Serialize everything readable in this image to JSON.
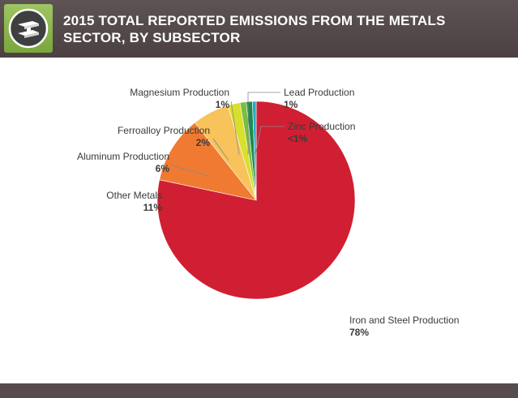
{
  "header": {
    "title_line1": "2015 TOTAL REPORTED EMISSIONS FROM THE METALS",
    "title_line2": "SECTOR, BY SUBSECTOR",
    "icon": "steel-beam-icon"
  },
  "chart_data": {
    "type": "pie",
    "title": "2015 TOTAL REPORTED EMISSIONS FROM THE METALS SECTOR, BY SUBSECTOR",
    "slices": [
      {
        "label": "Iron and Steel Production",
        "value": 78,
        "pct_label": "78%",
        "color": "#d01f32"
      },
      {
        "label": "Other Metals",
        "value": 11,
        "pct_label": "11%",
        "color": "#f07a32"
      },
      {
        "label": "Aluminum Production",
        "value": 6,
        "pct_label": "6%",
        "color": "#f7c35a"
      },
      {
        "label": "Ferroalloy Production",
        "value": 2,
        "pct_label": "2%",
        "color": "#d9df2b"
      },
      {
        "label": "Magnesium Production",
        "value": 1,
        "pct_label": "1%",
        "color": "#7bbc44"
      },
      {
        "label": "Lead Production",
        "value": 1,
        "pct_label": "1%",
        "color": "#1f8a4c"
      },
      {
        "label": "Zinc Production",
        "value": 0.6,
        "pct_label": "<1%",
        "color": "#23a9c9"
      }
    ]
  }
}
